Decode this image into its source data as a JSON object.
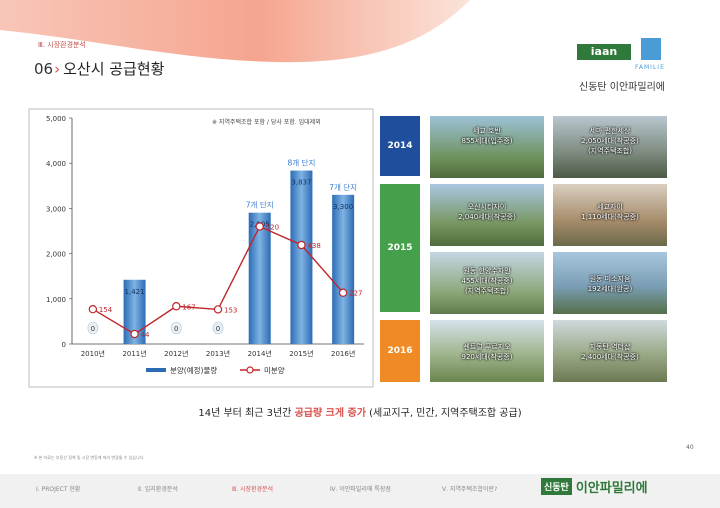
{
  "header": {
    "section_label": "Ⅲ. 시장환경분석",
    "title_num": "06",
    "title_chev": "›",
    "title_text": "오산시 공급현황"
  },
  "logo": {
    "iaan": "iaan",
    "familie": "FAMILIE",
    "tagline": "신동탄 이안파밀리에"
  },
  "chart_note": "※ 지역주택조합 포함 / 당사 포함. 임대제외",
  "chart_data": {
    "type": "bar",
    "categories": [
      "2010년",
      "2011년",
      "2012년",
      "2013년",
      "2014년",
      "2015년",
      "2016년"
    ],
    "ylim": [
      0,
      5000
    ],
    "yticks": [
      "0",
      "1,000",
      "2,000",
      "3,000",
      "4,000",
      "5,000"
    ],
    "series": [
      {
        "name": "분양(예정)물량",
        "values": [
          0,
          1421,
          0,
          0,
          2905,
          3837,
          3300
        ],
        "labels": [
          "0",
          "1,421",
          "0",
          "0",
          "2,905",
          "3,837",
          "3,300"
        ]
      },
      {
        "name": "미분양",
        "values": [
          154,
          44,
          167,
          153,
          520,
          438,
          227
        ],
        "labels": [
          "154",
          "44",
          "167",
          "153",
          "520",
          "438",
          "227"
        ]
      }
    ],
    "annotations": [
      {
        "category": "2014년",
        "text": "7개 단지"
      },
      {
        "category": "2015년",
        "text": "8개 단지"
      },
      {
        "category": "2016년",
        "text": "7개 단지"
      }
    ],
    "legend": "bottom"
  },
  "years": [
    "2014",
    "2015",
    "2016"
  ],
  "projects": [
    {
      "name": "세교 호반",
      "detail": "855세대(입주중)"
    },
    {
      "name": "세마 편한세상",
      "detail": "2,050세대(착공중)",
      "extra": "(지역주택조합)"
    },
    {
      "name": "오산시티자이",
      "detail": "2,040세대(착공중)"
    },
    {
      "name": "세교자이",
      "detail": "1,110세대(착공중)"
    },
    {
      "name": "원동 한양수자인",
      "detail": "455세대(착공중)",
      "extra": "(지역주택조합)"
    },
    {
      "name": "원동 미소지움",
      "detail": "192세대(완공)"
    },
    {
      "name": "센트럴 푸르지오",
      "detail": "920세대(착공중)"
    },
    {
      "name": "지동탄 역더샵",
      "detail": "2,400세대(착공중)"
    }
  ],
  "summary": {
    "pre": "14년 부터 최근 3년간 ",
    "highlight": "공급량 크게 증가",
    "post": " (세교지구, 민간, 지역주택조합 공급)"
  },
  "footnote": "※ 본 자료는 부동산 정책 및 시장 변동에 따라 변경될 수 있습니다.",
  "page_number": "40",
  "footer": {
    "nav": [
      "Ⅰ. PROJECT 현황",
      "Ⅱ. 입지환경분석",
      "Ⅲ. 시장환경분석",
      "Ⅳ. 이안파밀리에 특장점",
      "Ⅴ. 지역주택조합이란?"
    ],
    "brand_a": "신동탄",
    "brand_b": "이안파밀리에"
  }
}
